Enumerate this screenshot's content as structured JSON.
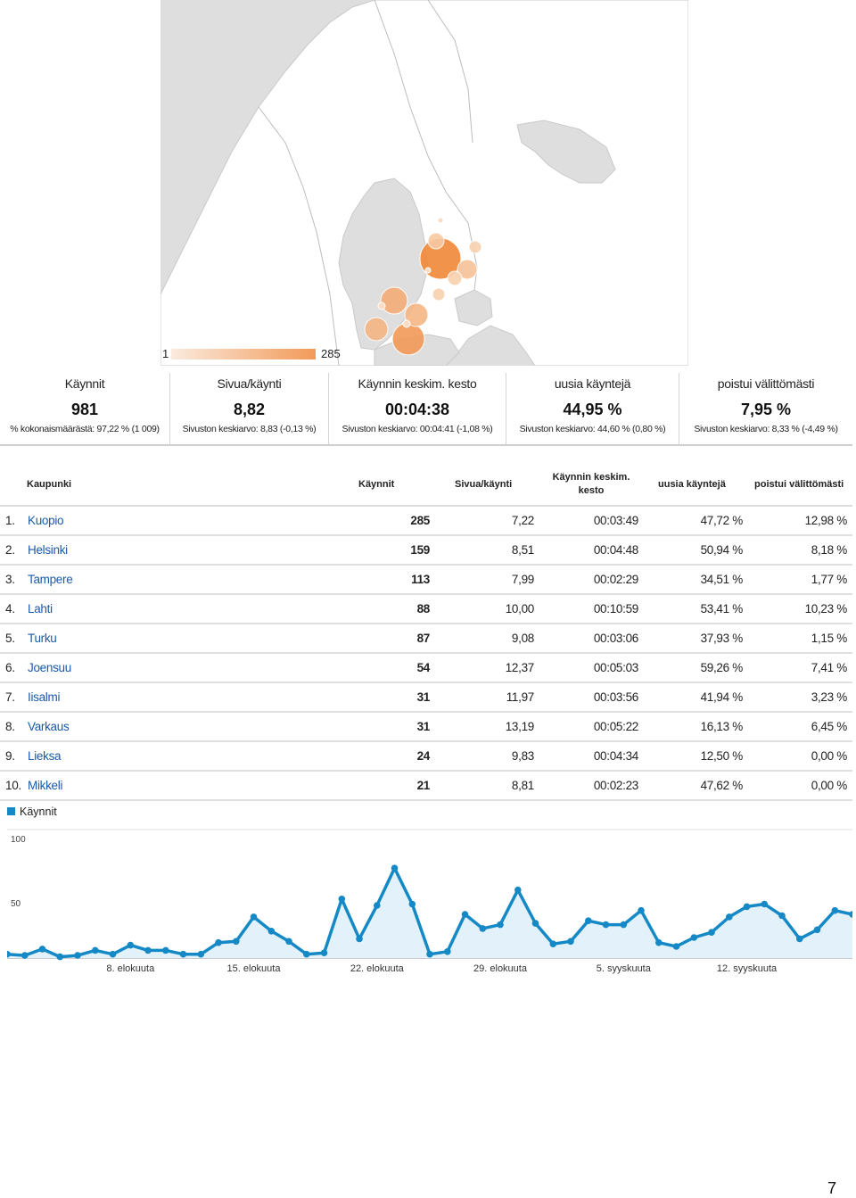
{
  "map": {
    "legend_min": "1",
    "legend_max": "285",
    "bubble_color": "#f08a3c",
    "land_color": "#ffffff",
    "water_color": "#dedede"
  },
  "scorecards": [
    {
      "label": "Käynnit",
      "value": "981",
      "sub": "% kokonaismäärästä: 97,22 % (1 009)"
    },
    {
      "label": "Sivua/käynti",
      "value": "8,82",
      "sub": "Sivuston keskiarvo: 8,83 (-0,13 %)"
    },
    {
      "label": "Käynnin keskim. kesto",
      "value": "00:04:38",
      "sub": "Sivuston keskiarvo: 00:04:41 (-1,08 %)"
    },
    {
      "label": "uusia käyntejä",
      "value": "44,95 %",
      "sub": "Sivuston keskiarvo: 44,60 % (0,80 %)"
    },
    {
      "label": "poistui välittömästi",
      "value": "7,95 %",
      "sub": "Sivuston keskiarvo: 8,33 % (-4,49 %)"
    }
  ],
  "table": {
    "headers": {
      "city": "Kaupunki",
      "visits": "Käynnit",
      "ppv": "Sivua/käynti",
      "dur_line1": "Käynnin keskim.",
      "dur_line2": "kesto",
      "newp": "uusia käyntejä",
      "bounce": "poistui välittömästi"
    },
    "rows": [
      {
        "rank": "1.",
        "city": "Kuopio",
        "visits": "285",
        "ppv": "7,22",
        "dur": "00:03:49",
        "newp": "47,72 %",
        "bounce": "12,98 %"
      },
      {
        "rank": "2.",
        "city": "Helsinki",
        "visits": "159",
        "ppv": "8,51",
        "dur": "00:04:48",
        "newp": "50,94 %",
        "bounce": "8,18 %"
      },
      {
        "rank": "3.",
        "city": "Tampere",
        "visits": "113",
        "ppv": "7,99",
        "dur": "00:02:29",
        "newp": "34,51 %",
        "bounce": "1,77 %"
      },
      {
        "rank": "4.",
        "city": "Lahti",
        "visits": "88",
        "ppv": "10,00",
        "dur": "00:10:59",
        "newp": "53,41 %",
        "bounce": "10,23 %"
      },
      {
        "rank": "5.",
        "city": "Turku",
        "visits": "87",
        "ppv": "9,08",
        "dur": "00:03:06",
        "newp": "37,93 %",
        "bounce": "1,15 %"
      },
      {
        "rank": "6.",
        "city": "Joensuu",
        "visits": "54",
        "ppv": "12,37",
        "dur": "00:05:03",
        "newp": "59,26 %",
        "bounce": "7,41 %"
      },
      {
        "rank": "7.",
        "city": "Iisalmi",
        "visits": "31",
        "ppv": "11,97",
        "dur": "00:03:56",
        "newp": "41,94 %",
        "bounce": "3,23 %"
      },
      {
        "rank": "8.",
        "city": "Varkaus",
        "visits": "31",
        "ppv": "13,19",
        "dur": "00:05:22",
        "newp": "16,13 %",
        "bounce": "6,45 %"
      },
      {
        "rank": "9.",
        "city": "Lieksa",
        "visits": "24",
        "ppv": "9,83",
        "dur": "00:04:34",
        "newp": "12,50 %",
        "bounce": "0,00 %"
      },
      {
        "rank": "10.",
        "city": "Mikkeli",
        "visits": "21",
        "ppv": "8,81",
        "dur": "00:02:23",
        "newp": "47,62 %",
        "bounce": "0,00 %"
      }
    ]
  },
  "chart_data": {
    "type": "area",
    "legend": "Käynnit",
    "series_color": "#1589c6",
    "fill_color": "#e3f2fa",
    "ylim": [
      0,
      100
    ],
    "y_ticks": [
      "100",
      "50"
    ],
    "x_tick_labels": [
      "8. elokuuta",
      "15. elokuuta",
      "22. elokuuta",
      "29. elokuuta",
      "5. syyskuuta",
      "12. syyskuuta"
    ],
    "series": [
      {
        "name": "Käynnit",
        "values": [
          3,
          2,
          7,
          1,
          2,
          6,
          3,
          10,
          6,
          6,
          3,
          3,
          12,
          13,
          32,
          21,
          13,
          3,
          4,
          46,
          15,
          41,
          70,
          42,
          3,
          5,
          34,
          23,
          26,
          53,
          27,
          11,
          13,
          29,
          26,
          26,
          37,
          12,
          9,
          16,
          20,
          32,
          40,
          42,
          33,
          15,
          22,
          37,
          34
        ]
      }
    ]
  },
  "page_number": "7"
}
